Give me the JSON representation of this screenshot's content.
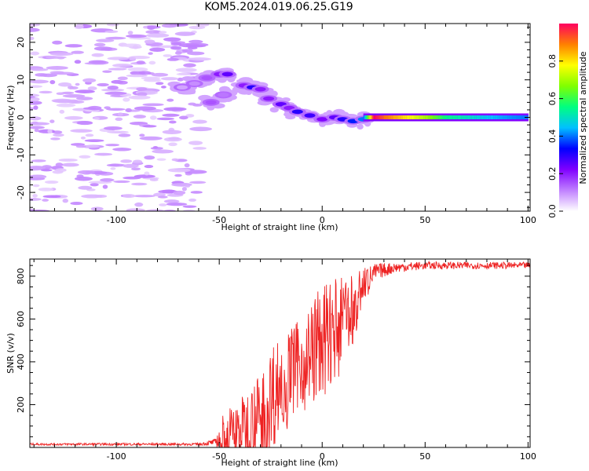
{
  "title": "KOM5.2024.019.06.25.G19",
  "chart_data": [
    {
      "type": "heatmap",
      "xlabel": "Height of straight line (km)",
      "ylabel": "Frequency (Hz)",
      "xlim": [
        -142,
        101
      ],
      "ylim": [
        -25,
        25
      ],
      "xticks": [
        -100,
        -50,
        0,
        50,
        100
      ],
      "yticks": [
        -20,
        -10,
        0,
        10,
        20
      ],
      "colorbar": {
        "label": "Normalized spectral amplitude",
        "ticks": [
          "0.0",
          "0.2",
          "0.4",
          "0.6",
          "0.8"
        ],
        "tick_values": [
          0.0,
          0.2,
          0.4,
          0.6,
          0.8
        ],
        "range": [
          0,
          1
        ],
        "colormap": [
          "#ffffff",
          "#c080ff",
          "#8000ff",
          "#0000ff",
          "#00c0ff",
          "#00ff80",
          "#80ff00",
          "#ffff00",
          "#ff8000",
          "#ff0060"
        ]
      },
      "ridge": [
        {
          "x": -68,
          "f": 8,
          "a": 0.08
        },
        {
          "x": -62,
          "f": 9,
          "a": 0.1
        },
        {
          "x": -56,
          "f": 10.5,
          "a": 0.15
        },
        {
          "x": -50,
          "f": 11.5,
          "a": 0.2
        },
        {
          "x": -46,
          "f": 11.5,
          "a": 0.25
        },
        {
          "x": -54,
          "f": 4,
          "a": 0.15
        },
        {
          "x": -48,
          "f": 6,
          "a": 0.12
        },
        {
          "x": -38,
          "f": 8.5,
          "a": 0.2
        },
        {
          "x": -34,
          "f": 8,
          "a": 0.3
        },
        {
          "x": -30,
          "f": 7.5,
          "a": 0.2
        },
        {
          "x": -26,
          "f": 5,
          "a": 0.2
        },
        {
          "x": -20,
          "f": 3.5,
          "a": 0.25
        },
        {
          "x": -16,
          "f": 2.5,
          "a": 0.2
        },
        {
          "x": -12,
          "f": 1.5,
          "a": 0.3
        },
        {
          "x": -6,
          "f": 0.5,
          "a": 0.28
        },
        {
          "x": 0,
          "f": -0.5,
          "a": 0.22
        },
        {
          "x": 6,
          "f": 0,
          "a": 0.25
        },
        {
          "x": 10,
          "f": -0.5,
          "a": 0.3
        },
        {
          "x": 15,
          "f": -1,
          "a": 0.35
        },
        {
          "x": 20,
          "f": -0.5,
          "a": 0.4
        },
        {
          "x": 25,
          "f": 0,
          "a": 1.0
        },
        {
          "x": 30,
          "f": 0,
          "a": 0.9
        },
        {
          "x": 40,
          "f": 0,
          "a": 0.8
        },
        {
          "x": 50,
          "f": 0,
          "a": 0.7
        },
        {
          "x": 60,
          "f": 0,
          "a": 0.55
        },
        {
          "x": 70,
          "f": 0,
          "a": 0.5
        },
        {
          "x": 80,
          "f": 0,
          "a": 0.45
        },
        {
          "x": 90,
          "f": 0,
          "a": 0.42
        },
        {
          "x": 100,
          "f": 0,
          "a": 0.4
        }
      ],
      "noise_region": {
        "x": [
          -142,
          -58
        ],
        "f": [
          -25,
          25
        ],
        "amplitude": 0.05
      }
    },
    {
      "type": "line",
      "xlabel": "Height of straight line (km)",
      "ylabel": "SNR (v/v)",
      "xlim": [
        -142,
        101
      ],
      "ylim": [
        0,
        880
      ],
      "xticks": [
        -100,
        -50,
        0,
        50,
        100
      ],
      "yticks": [
        200,
        400,
        600,
        800
      ],
      "color": "#ee2222",
      "envelope": [
        {
          "x": -142,
          "base": 15,
          "spread": 5
        },
        {
          "x": -60,
          "base": 15,
          "spread": 6
        },
        {
          "x": -52,
          "base": 25,
          "spread": 15
        },
        {
          "x": -48,
          "base": 60,
          "spread": 110
        },
        {
          "x": -40,
          "base": 80,
          "spread": 150
        },
        {
          "x": -30,
          "base": 150,
          "spread": 200
        },
        {
          "x": -24,
          "base": 250,
          "spread": 260
        },
        {
          "x": -20,
          "base": 300,
          "spread": 220
        },
        {
          "x": -14,
          "base": 370,
          "spread": 200
        },
        {
          "x": -8,
          "base": 420,
          "spread": 220
        },
        {
          "x": -2,
          "base": 480,
          "spread": 260
        },
        {
          "x": 4,
          "base": 540,
          "spread": 240
        },
        {
          "x": 10,
          "base": 600,
          "spread": 200
        },
        {
          "x": 16,
          "base": 680,
          "spread": 140
        },
        {
          "x": 20,
          "base": 760,
          "spread": 80
        },
        {
          "x": 26,
          "base": 820,
          "spread": 40
        },
        {
          "x": 35,
          "base": 840,
          "spread": 25
        },
        {
          "x": 50,
          "base": 850,
          "spread": 18
        },
        {
          "x": 101,
          "base": 850,
          "spread": 15
        }
      ]
    }
  ]
}
